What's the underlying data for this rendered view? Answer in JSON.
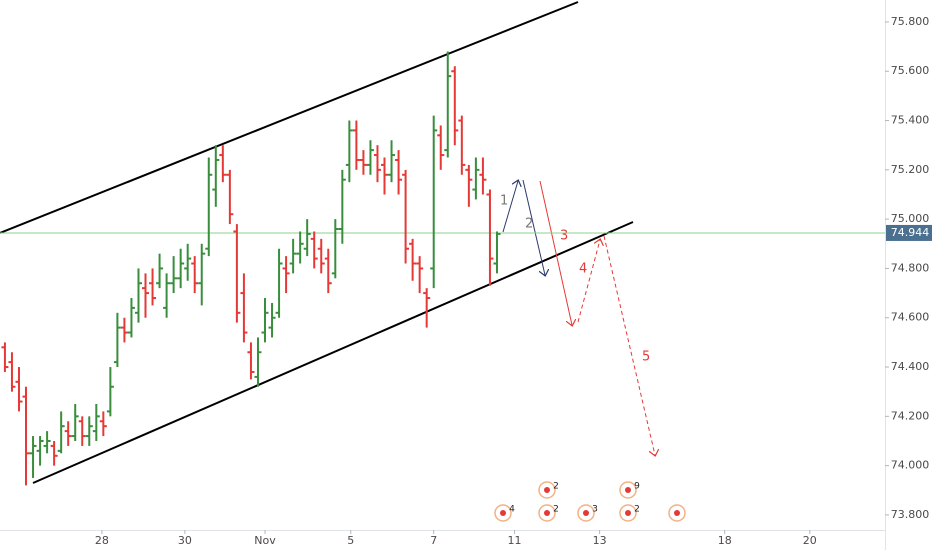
{
  "chart_data": {
    "type": "ohlc",
    "ohlc": [
      [
        74.48,
        74.5,
        74.38,
        74.4
      ],
      [
        74.42,
        74.46,
        74.3,
        74.32
      ],
      [
        74.34,
        74.4,
        74.22,
        74.26
      ],
      [
        74.28,
        74.32,
        73.92,
        74.05
      ],
      [
        74.05,
        74.12,
        73.95,
        74.08
      ],
      [
        74.06,
        74.12,
        74.0,
        74.1
      ],
      [
        74.08,
        74.14,
        74.05,
        74.1
      ],
      [
        74.08,
        74.1,
        74.0,
        74.04
      ],
      [
        74.06,
        74.22,
        74.05,
        74.16
      ],
      [
        74.14,
        74.18,
        74.08,
        74.12
      ],
      [
        74.12,
        74.25,
        74.1,
        74.2
      ],
      [
        74.18,
        74.2,
        74.08,
        74.12
      ],
      [
        74.12,
        74.2,
        74.08,
        74.16
      ],
      [
        74.14,
        74.25,
        74.1,
        74.2
      ],
      [
        74.18,
        74.22,
        74.12,
        74.16
      ],
      [
        74.22,
        74.4,
        74.2,
        74.32
      ],
      [
        74.42,
        74.62,
        74.4,
        74.56
      ],
      [
        74.56,
        74.6,
        74.5,
        74.54
      ],
      [
        74.54,
        74.68,
        74.52,
        74.64
      ],
      [
        74.62,
        74.8,
        74.58,
        74.74
      ],
      [
        74.72,
        74.78,
        74.6,
        74.7
      ],
      [
        74.74,
        74.8,
        74.65,
        74.68
      ],
      [
        74.74,
        74.86,
        74.72,
        74.8
      ],
      [
        74.64,
        74.78,
        74.6,
        74.74
      ],
      [
        74.74,
        74.85,
        74.7,
        74.76
      ],
      [
        74.76,
        74.88,
        74.72,
        74.82
      ],
      [
        74.8,
        74.9,
        74.75,
        74.84
      ],
      [
        74.82,
        74.85,
        74.7,
        74.74
      ],
      [
        74.74,
        74.9,
        74.65,
        74.86
      ],
      [
        74.88,
        75.25,
        74.85,
        75.18
      ],
      [
        75.12,
        75.3,
        75.05,
        75.24
      ],
      [
        75.26,
        75.3,
        75.15,
        75.18
      ],
      [
        75.18,
        75.2,
        74.98,
        75.02
      ],
      [
        74.95,
        74.98,
        74.58,
        74.62
      ],
      [
        74.7,
        74.78,
        74.5,
        74.54
      ],
      [
        74.46,
        74.5,
        74.35,
        74.38
      ],
      [
        74.36,
        74.52,
        74.32,
        74.46
      ],
      [
        74.54,
        74.68,
        74.5,
        74.62
      ],
      [
        74.56,
        74.66,
        74.52,
        74.6
      ],
      [
        74.62,
        74.88,
        74.6,
        74.82
      ],
      [
        74.8,
        74.85,
        74.7,
        74.78
      ],
      [
        74.82,
        74.92,
        74.78,
        74.86
      ],
      [
        74.86,
        74.95,
        74.82,
        74.9
      ],
      [
        74.88,
        75.0,
        74.85,
        74.94
      ],
      [
        74.92,
        74.95,
        74.8,
        74.84
      ],
      [
        74.88,
        74.92,
        74.78,
        74.82
      ],
      [
        74.84,
        74.88,
        74.7,
        74.74
      ],
      [
        74.78,
        75.0,
        74.76,
        74.96
      ],
      [
        74.96,
        75.2,
        74.9,
        75.16
      ],
      [
        75.22,
        75.4,
        75.15,
        75.36
      ],
      [
        75.36,
        75.4,
        75.2,
        75.24
      ],
      [
        75.24,
        75.28,
        75.18,
        75.22
      ],
      [
        75.22,
        75.32,
        75.18,
        75.28
      ],
      [
        75.26,
        75.3,
        75.15,
        75.2
      ],
      [
        75.22,
        75.25,
        75.1,
        75.18
      ],
      [
        75.18,
        75.32,
        75.15,
        75.26
      ],
      [
        75.24,
        75.28,
        75.1,
        75.16
      ],
      [
        75.18,
        75.2,
        74.82,
        74.88
      ],
      [
        74.9,
        74.92,
        74.75,
        74.82
      ],
      [
        74.82,
        74.85,
        74.7,
        74.8
      ],
      [
        74.7,
        74.72,
        74.56,
        74.68
      ],
      [
        74.8,
        75.42,
        74.72,
        75.36
      ],
      [
        75.34,
        75.38,
        75.2,
        75.26
      ],
      [
        75.28,
        75.68,
        75.25,
        75.58
      ],
      [
        75.6,
        75.62,
        75.3,
        75.36
      ],
      [
        75.4,
        75.42,
        75.18,
        75.22
      ],
      [
        75.2,
        75.22,
        75.05,
        75.16
      ],
      [
        75.12,
        75.25,
        75.08,
        75.2
      ],
      [
        75.18,
        75.25,
        75.1,
        75.16
      ],
      [
        75.1,
        75.12,
        74.73,
        74.84
      ],
      [
        74.82,
        74.95,
        74.78,
        74.94
      ]
    ],
    "up_color": "#388e3c",
    "down_color": "#e53935",
    "xlim": [
      -0.7,
      125.2
    ],
    "xticks": [
      {
        "value": 13.8,
        "label": "28"
      },
      {
        "value": 25.6,
        "label": "30"
      },
      {
        "value": 37.0,
        "label": "Nov"
      },
      {
        "value": 49.2,
        "label": "5"
      },
      {
        "value": 61.0,
        "label": "7"
      },
      {
        "value": 72.5,
        "label": "11"
      },
      {
        "value": 84.6,
        "label": "13"
      },
      {
        "value": 102.4,
        "label": "18"
      },
      {
        "value": 114.5,
        "label": "20"
      }
    ],
    "ylim": [
      73.747,
      75.889
    ],
    "yticks": [
      {
        "value": 73.8,
        "label": "73.800"
      },
      {
        "value": 74.0,
        "label": "74.000"
      },
      {
        "value": 74.2,
        "label": "74.200"
      },
      {
        "value": 74.4,
        "label": "74.400"
      },
      {
        "value": 74.6,
        "label": "74.600"
      },
      {
        "value": 74.8,
        "label": "74.800"
      },
      {
        "value": 75.0,
        "label": "75.000"
      },
      {
        "value": 75.2,
        "label": "75.200"
      },
      {
        "value": 75.4,
        "label": "75.400"
      },
      {
        "value": 75.6,
        "label": "75.600"
      },
      {
        "value": 75.8,
        "label": "75.800"
      }
    ],
    "last_price": 74.944,
    "annotations": [
      "1",
      "2",
      "3",
      "4",
      "5"
    ],
    "events": [
      "4",
      "2",
      "2",
      "3",
      "9",
      "2"
    ]
  }
}
